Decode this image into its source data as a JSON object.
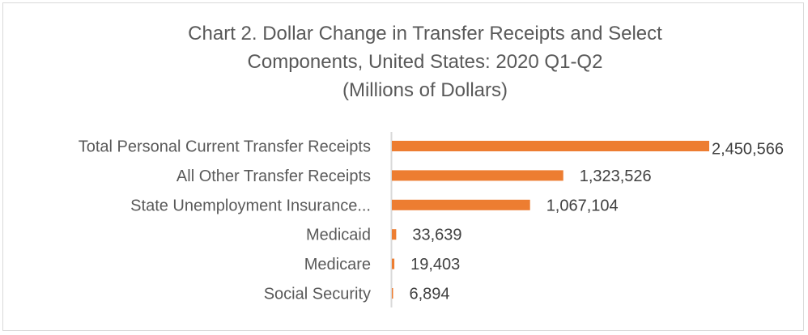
{
  "chart_data": {
    "type": "bar",
    "orientation": "horizontal",
    "title_lines": [
      "Chart 2. Dollar Change in Transfer Receipts and Select",
      "Components, United States: 2020 Q1-Q2",
      "(Millions of Dollars)"
    ],
    "categories": [
      "Total Personal Current Transfer Receipts",
      "All Other Transfer Receipts",
      "State Unemployment Insurance...",
      "Medicaid",
      "Medicare",
      "Social Security"
    ],
    "values": [
      2450566,
      1323526,
      1067104,
      33639,
      19403,
      6894
    ],
    "data_labels": [
      "2,450,566",
      "1,323,526",
      "1,067,104",
      "33,639",
      "19,403",
      "6,894"
    ],
    "xlim": [
      0,
      2450566
    ],
    "grid": false,
    "legend": "none",
    "bar_color": "#ED7D31"
  }
}
